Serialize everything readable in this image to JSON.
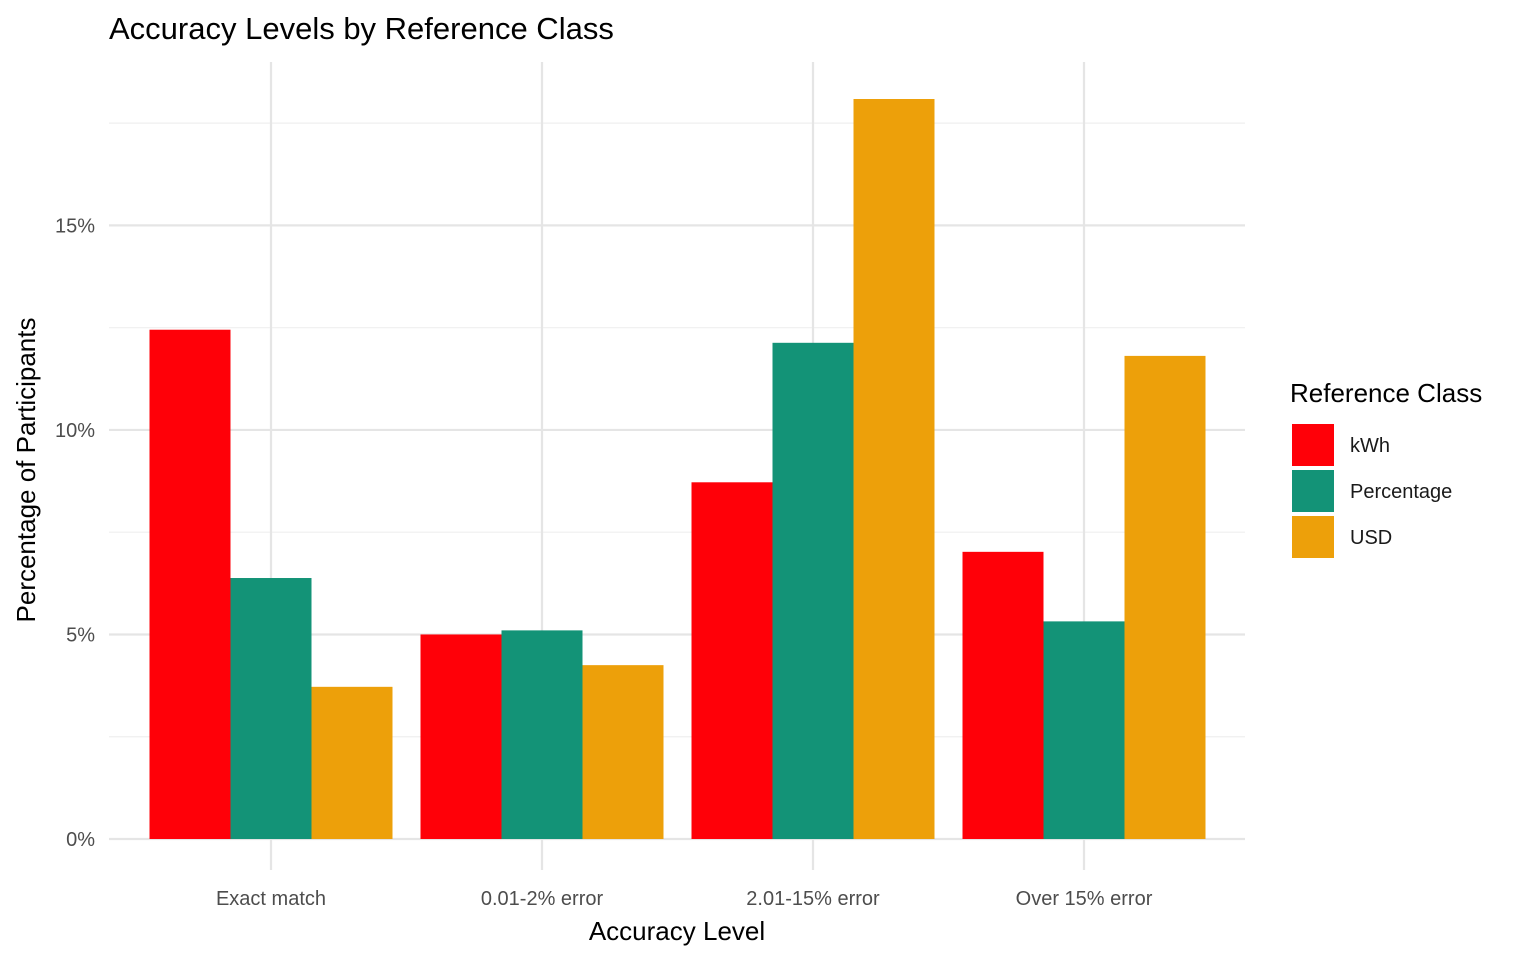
{
  "chart_data": {
    "type": "bar",
    "title": "Accuracy Levels by Reference Class",
    "xlabel": "Accuracy Level",
    "ylabel": "Percentage of Participants",
    "categories": [
      "Exact match",
      "0.01-2% error",
      "2.01-15% error",
      "Over 15% error"
    ],
    "series": [
      {
        "name": "kWh",
        "color": "#FF0008",
        "values": [
          12.45,
          5.0,
          8.72,
          7.02
        ]
      },
      {
        "name": "Percentage",
        "color": "#139377",
        "values": [
          6.38,
          5.1,
          12.13,
          5.32
        ]
      },
      {
        "name": "USD",
        "color": "#EDA00A",
        "values": [
          3.72,
          4.25,
          18.09,
          11.81
        ]
      }
    ],
    "ylim": [
      0,
      18.09
    ],
    "yticks": [
      0,
      5,
      10,
      15
    ],
    "ytick_labels": [
      "0%",
      "5%",
      "10%",
      "15%"
    ],
    "grid": true,
    "legend": {
      "title": "Reference Class",
      "position": "right"
    }
  }
}
